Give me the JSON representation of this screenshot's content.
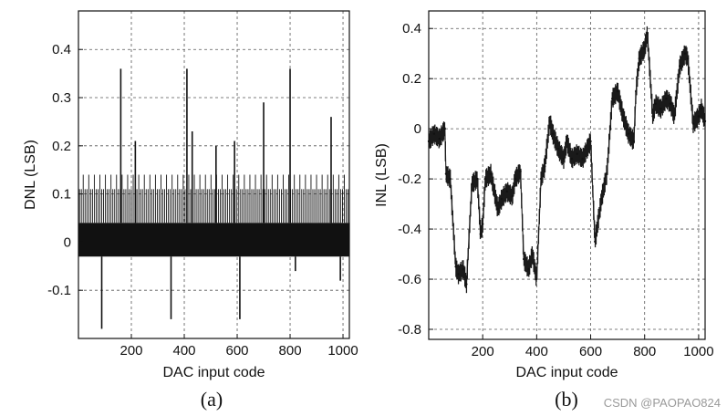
{
  "chart_data": [
    {
      "type": "bar",
      "panel_caption": "(a)",
      "xlabel": "DAC input code",
      "ylabel": "DNL (LSB)",
      "xlim": [
        0,
        1024
      ],
      "ylim": [
        -0.2,
        0.48
      ],
      "xticks": [
        200,
        400,
        600,
        800,
        1000
      ],
      "yticks": [
        -0.1,
        0,
        0.1,
        0.2,
        0.3,
        0.4
      ],
      "ytick_labels": [
        "-0.1",
        "0",
        "0.1",
        "0.2",
        "0.3",
        "0.4"
      ],
      "grid": true,
      "dense_band": [
        -0.03,
        0.04
      ],
      "baseline_bar_levels": [
        0.11,
        0.14
      ],
      "spikes": {
        "x": [
          88,
          160,
          215,
          350,
          410,
          430,
          520,
          590,
          610,
          700,
          800,
          820,
          955,
          990
        ],
        "values": [
          -0.18,
          0.36,
          0.21,
          -0.16,
          0.36,
          0.23,
          0.2,
          0.21,
          -0.16,
          0.29,
          0.36,
          -0.06,
          0.26,
          -0.08
        ]
      }
    },
    {
      "type": "line",
      "panel_caption": "(b)",
      "xlabel": "DAC input code",
      "ylabel": "INL (LSB)",
      "xlim": [
        0,
        1024
      ],
      "ylim": [
        -0.84,
        0.47
      ],
      "xticks": [
        200,
        400,
        600,
        800,
        1000
      ],
      "yticks": [
        -0.8,
        -0.6,
        -0.4,
        -0.2,
        0,
        0.2,
        0.4
      ],
      "ytick_labels": [
        "-0.8",
        "-0.6",
        "-0.4",
        "-0.2",
        "0",
        "0.2",
        "0.4"
      ],
      "grid": true,
      "band_halfwidth": 0.04,
      "series": [
        {
          "x": [
            0,
            20,
            40,
            60,
            64,
            80,
            100,
            110,
            128,
            140,
            160,
            180,
            192,
            200,
            210,
            230,
            256,
            270,
            290,
            310,
            320,
            340,
            352,
            370,
            384,
            400,
            416,
            430,
            448,
            460,
            480,
            500,
            512,
            530,
            550,
            570,
            600,
            616,
            640,
            660,
            680,
            700,
            720,
            740,
            760,
            768,
            780,
            800,
            810,
            830,
            840,
            860,
            880,
            896,
            910,
            930,
            950,
            960,
            980,
            1000,
            1010,
            1024
          ],
          "values": [
            -0.05,
            -0.02,
            -0.04,
            0.0,
            -0.18,
            -0.2,
            -0.55,
            -0.58,
            -0.56,
            -0.62,
            -0.22,
            -0.2,
            -0.42,
            -0.38,
            -0.2,
            -0.18,
            -0.32,
            -0.28,
            -0.25,
            -0.27,
            -0.2,
            -0.17,
            -0.52,
            -0.56,
            -0.5,
            -0.6,
            -0.2,
            -0.15,
            0.03,
            -0.02,
            -0.08,
            -0.12,
            -0.05,
            -0.12,
            -0.1,
            -0.12,
            -0.05,
            -0.45,
            -0.28,
            -0.18,
            0.12,
            0.15,
            0.05,
            -0.02,
            -0.05,
            0.15,
            0.28,
            0.32,
            0.38,
            0.05,
            0.1,
            0.08,
            0.12,
            0.1,
            0.05,
            0.25,
            0.3,
            0.28,
            0.02,
            0.05,
            0.08,
            0.03
          ]
        }
      ]
    }
  ],
  "watermark": "CSDN @PAOPAO824"
}
